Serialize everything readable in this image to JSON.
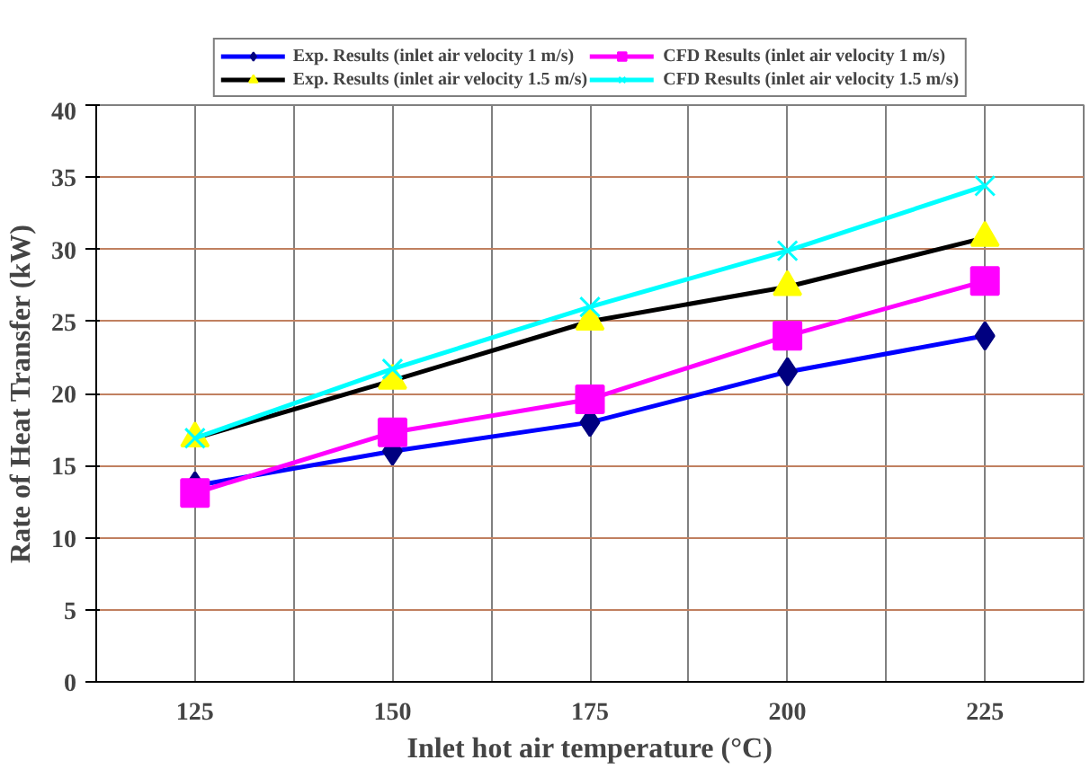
{
  "chart_data": {
    "type": "line",
    "xlabel": "Inlet hot air temperature (°C)",
    "ylabel": "Rate of Heat Transfer (kW)",
    "categories": [
      "125",
      "150",
      "175",
      "200",
      "225"
    ],
    "ylim": [
      0,
      40
    ],
    "yticks": [
      0,
      5,
      10,
      15,
      20,
      25,
      30,
      35,
      40
    ],
    "grid": true,
    "legend": "top",
    "series": [
      {
        "name": "Exp. Results (inlet air velocity 1 m/s)",
        "color": "#0000ff",
        "marker": "diamond",
        "colors": [
          "#000080",
          "#000080",
          "#000080",
          "#000080",
          "#000080"
        ],
        "values": [
          13.6,
          16,
          18,
          21.5,
          24
        ]
      },
      {
        "name": "CFD Results (inlet air velocity 1 m/s)",
        "color": "#ff00ff",
        "marker": "square",
        "values": [
          13.1,
          17.3,
          19.6,
          24,
          27.8
        ]
      },
      {
        "name": "Exp. Results (inlet air velocity 1.5 m/s)",
        "color": "#000000",
        "marker": "triangle",
        "colors": [
          "#ffff00",
          "#ffff00",
          "#ffff00",
          "#ffff00",
          "#ffff00"
        ],
        "values": [
          16.9,
          20.9,
          25,
          27.4,
          30.8
        ]
      },
      {
        "name": "CFD Results (inlet air velocity 1.5 m/s)",
        "color": "#00ffff",
        "marker": "cross",
        "values": [
          16.9,
          21.7,
          26,
          29.9,
          34.4
        ]
      }
    ]
  }
}
